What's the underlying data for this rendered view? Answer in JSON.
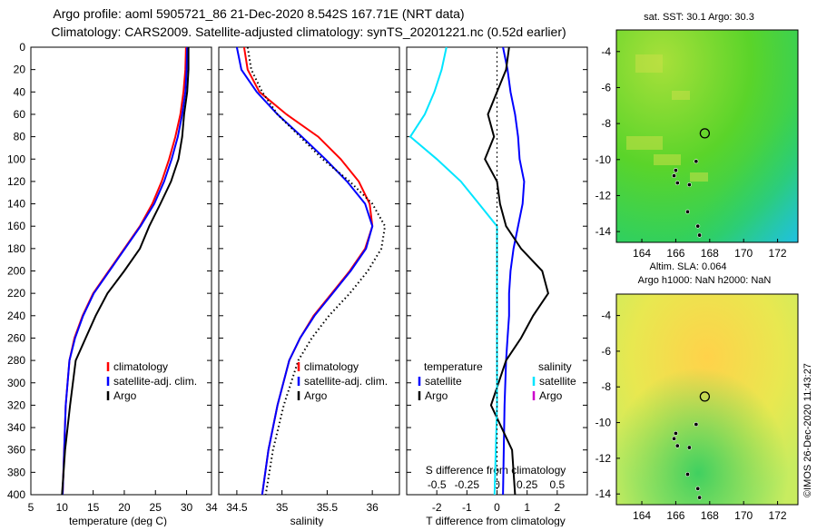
{
  "title_line1": "Argo profile: aoml 5905721_86 21-Dec-2020 8.542S 167.71E (NRT data)",
  "title_line2": "Climatology: CARS2009. Satellite-adjusted climatology: synTS_20201221.nc (0.52d earlier)",
  "watermark": "©IMOS 26-Dec-2020 11:43:27",
  "colors": {
    "climatology": "#ff0000",
    "satellite": "#0000ff",
    "argo": "#000000",
    "sat_salinity": "#00e5ff",
    "argo_salinity": "#cc00cc"
  },
  "chart_data": [
    {
      "type": "line",
      "id": "temperature",
      "xlabel": "temperature (deg C)",
      "ylabel": "",
      "xlim": [
        5,
        34
      ],
      "ylim": [
        400,
        0
      ],
      "xticks": [
        5,
        10,
        15,
        20,
        25,
        30
      ],
      "yticks": [
        0,
        20,
        40,
        60,
        80,
        100,
        120,
        140,
        160,
        180,
        200,
        220,
        240,
        260,
        280,
        300,
        320,
        340,
        360,
        380,
        400
      ],
      "legend": [
        "climatology",
        "satellite-adj. clim.",
        "Argo"
      ],
      "series": [
        {
          "name": "climatology",
          "style": "solid",
          "color": "#ff0000",
          "x": [
            29.9,
            29.8,
            29.5,
            29.0,
            28.2,
            27.2,
            26.0,
            24.5,
            22.5,
            20.0,
            17.5,
            15.0,
            13.3,
            12.0,
            11.2,
            10.6,
            10.1
          ],
          "y": [
            0,
            20,
            40,
            60,
            80,
            100,
            120,
            140,
            160,
            180,
            200,
            220,
            240,
            260,
            280,
            320,
            400
          ]
        },
        {
          "name": "satellite-adj. clim.",
          "style": "solid",
          "color": "#0000ff",
          "x": [
            30.1,
            30.0,
            29.8,
            29.3,
            28.6,
            27.6,
            26.4,
            24.8,
            22.6,
            20.1,
            17.6,
            15.1,
            13.4,
            12.1,
            11.2,
            10.6,
            10.1
          ],
          "y": [
            0,
            20,
            40,
            60,
            80,
            100,
            120,
            140,
            160,
            180,
            200,
            220,
            240,
            260,
            280,
            320,
            400
          ]
        },
        {
          "name": "Argo",
          "style": "solid",
          "color": "#000000",
          "x": [
            30.3,
            30.3,
            30.1,
            29.6,
            29.3,
            28.7,
            27.5,
            25.8,
            24.0,
            22.5,
            20.0,
            17.3,
            15.4,
            13.8,
            12.2,
            11.3,
            10.5,
            10.0
          ],
          "y": [
            0,
            20,
            40,
            60,
            80,
            100,
            120,
            140,
            160,
            180,
            200,
            220,
            240,
            260,
            280,
            320,
            360,
            400
          ]
        }
      ]
    },
    {
      "type": "line",
      "id": "salinity",
      "xlabel": "salinity",
      "xlim": [
        34.3,
        36.3
      ],
      "ylim": [
        400,
        0
      ],
      "xticks": [
        34.5,
        35,
        35.5,
        36
      ],
      "xticklabels": [
        "34.5",
        "35",
        "35.5",
        "36"
      ],
      "legend": [
        "climatology",
        "satellite-adj. clim.",
        "Argo"
      ],
      "series": [
        {
          "name": "climatology",
          "style": "solid",
          "color": "#ff0000",
          "x": [
            34.58,
            34.62,
            34.75,
            35.05,
            35.4,
            35.65,
            35.85,
            35.97,
            36.0,
            35.92,
            35.75,
            35.55,
            35.35,
            35.2,
            35.08,
            34.95,
            34.85,
            34.78
          ],
          "y": [
            0,
            20,
            40,
            60,
            80,
            100,
            120,
            140,
            160,
            180,
            200,
            220,
            240,
            260,
            280,
            320,
            360,
            400
          ]
        },
        {
          "name": "satellite-adj. clim.",
          "style": "solid",
          "color": "#0000ff",
          "x": [
            34.5,
            34.55,
            34.72,
            34.95,
            35.22,
            35.48,
            35.72,
            35.92,
            36.0,
            35.93,
            35.76,
            35.56,
            35.36,
            35.2,
            35.08,
            34.95,
            34.85,
            34.78
          ],
          "y": [
            0,
            20,
            40,
            60,
            80,
            100,
            120,
            140,
            160,
            180,
            200,
            220,
            240,
            260,
            280,
            320,
            360,
            400
          ]
        },
        {
          "name": "Argo",
          "style": "dotted",
          "color": "#000000",
          "x": [
            34.62,
            34.66,
            34.78,
            34.95,
            35.2,
            35.45,
            35.75,
            36.0,
            36.14,
            36.1,
            35.95,
            35.75,
            35.52,
            35.33,
            35.18,
            35.02,
            34.9,
            34.82
          ],
          "y": [
            0,
            20,
            40,
            60,
            80,
            100,
            120,
            140,
            160,
            180,
            200,
            220,
            240,
            260,
            280,
            320,
            360,
            400
          ]
        }
      ]
    },
    {
      "type": "line",
      "id": "difference",
      "xlabel": "T difference from climatology",
      "inner_label": "S difference from climatology",
      "xlim": [
        -3,
        3
      ],
      "ylim": [
        400,
        0
      ],
      "xticks": [
        -2,
        -1,
        0,
        1,
        2
      ],
      "s_xticks": [
        -0.5,
        -0.25,
        0,
        0.25,
        0.5
      ],
      "s_xticklabels": [
        "-0.5",
        "-0.25",
        "0",
        "0.25",
        "0.5"
      ],
      "legend_temperature_title": "temperature",
      "legend_salinity_title": "salinity",
      "legend_temperature": [
        "satellite",
        "Argo"
      ],
      "legend_salinity": [
        "satellite",
        "Argo"
      ],
      "series": [
        {
          "name": "T satellite",
          "color": "#0000ff",
          "x": [
            0.2,
            0.35,
            0.45,
            0.6,
            0.7,
            0.75,
            0.9,
            0.85,
            0.7,
            0.55,
            0.45,
            0.4,
            0.4,
            0.35,
            0.3,
            0.25,
            0.2
          ],
          "y": [
            0,
            20,
            40,
            60,
            80,
            100,
            120,
            140,
            160,
            180,
            200,
            220,
            240,
            260,
            280,
            320,
            400
          ]
        },
        {
          "name": "T Argo",
          "color": "#000000",
          "x": [
            0.4,
            0.3,
            0.0,
            -0.3,
            -0.1,
            -0.4,
            0.0,
            0.1,
            0.3,
            0.8,
            1.5,
            1.7,
            1.2,
            0.8,
            0.3,
            -0.2,
            0.5,
            0.6
          ],
          "y": [
            0,
            20,
            40,
            60,
            80,
            100,
            120,
            140,
            160,
            180,
            200,
            220,
            240,
            260,
            280,
            320,
            360,
            400
          ]
        },
        {
          "name": "S satellite",
          "color": "#00e5ff",
          "x": [
            -0.42,
            -0.46,
            -0.52,
            -0.6,
            -0.72,
            -0.5,
            -0.3,
            -0.15,
            0.0,
            0.0,
            0.0,
            0.0,
            0.0,
            0.0,
            0.0,
            0.0,
            -0.02
          ],
          "y": [
            0,
            20,
            40,
            60,
            80,
            100,
            120,
            140,
            160,
            180,
            200,
            220,
            240,
            260,
            280,
            320,
            400
          ]
        }
      ]
    },
    {
      "type": "heatmap",
      "id": "sst-map",
      "title": "sat. SST: 30.1 Argo: 30.3",
      "caption": "Altim. SLA: 0.064",
      "xlim": [
        162.5,
        173.2
      ],
      "ylim": [
        -14.6,
        -2.8
      ],
      "xticks": [
        164,
        166,
        168,
        170,
        172
      ],
      "yticks": [
        -4,
        -6,
        -8,
        -10,
        -12,
        -14
      ],
      "float_position": {
        "lon": 167.71,
        "lat": -8.542
      },
      "track_points": [
        [
          167.4,
          -14.2
        ],
        [
          167.3,
          -13.7
        ],
        [
          166.7,
          -12.9
        ],
        [
          166.1,
          -11.3
        ],
        [
          165.9,
          -10.9
        ],
        [
          166.0,
          -10.6
        ],
        [
          166.8,
          -11.4
        ],
        [
          167.2,
          -10.1
        ]
      ]
    },
    {
      "type": "heatmap",
      "id": "depth-map",
      "title": "Argo h1000: NaN h2000: NaN",
      "xlim": [
        162.5,
        173.2
      ],
      "ylim": [
        -14.6,
        -2.8
      ],
      "xticks": [
        164,
        166,
        168,
        170,
        172
      ],
      "yticks": [
        -4,
        -6,
        -8,
        -10,
        -12,
        -14
      ],
      "float_position": {
        "lon": 167.71,
        "lat": -8.542
      },
      "track_points": [
        [
          167.4,
          -14.2
        ],
        [
          167.3,
          -13.7
        ],
        [
          166.7,
          -12.9
        ],
        [
          166.1,
          -11.3
        ],
        [
          165.9,
          -10.9
        ],
        [
          166.0,
          -10.6
        ],
        [
          166.8,
          -11.4
        ],
        [
          167.2,
          -10.1
        ]
      ]
    }
  ]
}
